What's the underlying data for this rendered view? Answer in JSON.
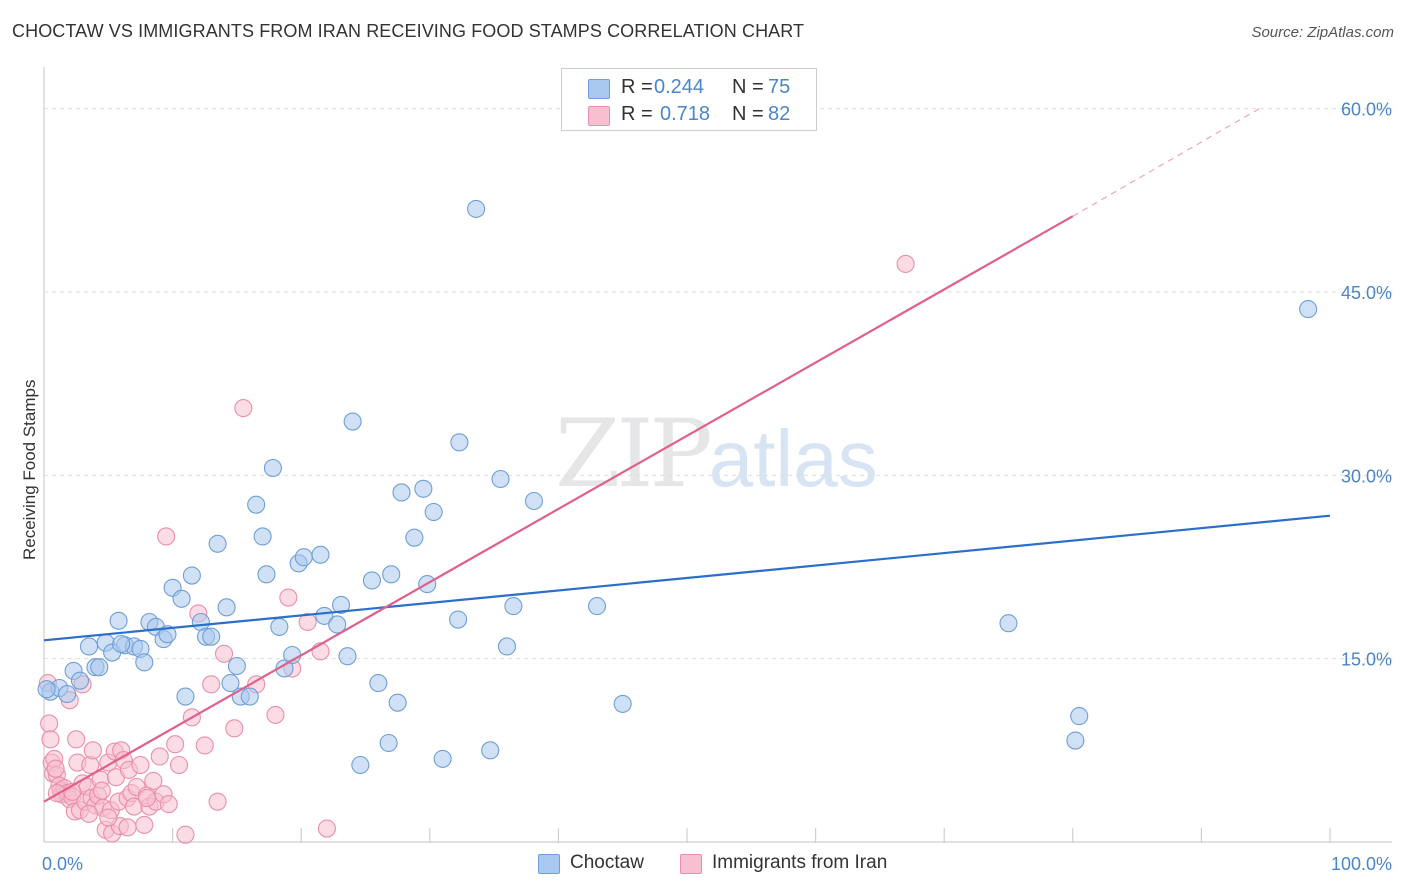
{
  "title": "CHOCTAW VS IMMIGRANTS FROM IRAN RECEIVING FOOD STAMPS CORRELATION CHART",
  "source": "Source: ZipAtlas.com",
  "watermark": {
    "zip": "ZIP",
    "atlas": "atlas"
  },
  "legend": {
    "series1": {
      "r_label": "R =",
      "r_value": "0.244",
      "n_label": "N =",
      "n_value": "75",
      "name": "Choctaw"
    },
    "series2": {
      "r_label": "R =",
      "r_value": "0.718",
      "n_label": "N =",
      "n_value": "82",
      "name": "Immigrants from Iran"
    }
  },
  "colors": {
    "blue_fill": "#a9c8ef",
    "blue_stroke": "#6e9fd6",
    "blue_line": "#2b6fcb",
    "pink_fill": "#f7bfcf",
    "pink_stroke": "#ea8fab",
    "pink_line": "#e0608a",
    "tick_text": "#4a86c8"
  },
  "chart_data": {
    "type": "scatter",
    "title": "CHOCTAW VS IMMIGRANTS FROM IRAN RECEIVING FOOD STAMPS CORRELATION CHART",
    "xlabel": "",
    "ylabel": "Receiving Food Stamps",
    "xlim": [
      0,
      100
    ],
    "ylim": [
      0,
      63
    ],
    "x_tick_labels": [
      "0.0%",
      "100.0%"
    ],
    "y_ticks": [
      15,
      30,
      45,
      60
    ],
    "y_tick_labels": [
      "15.0%",
      "30.0%",
      "45.0%",
      "60.0%"
    ],
    "legend_position": "top-center",
    "series": [
      {
        "name": "Choctaw",
        "r": 0.244,
        "n": 75,
        "trend": {
          "x": [
            0,
            100
          ],
          "y": [
            16.5,
            26.7
          ]
        },
        "points": [
          {
            "x": 0.5,
            "y": 12.3
          },
          {
            "x": 1.2,
            "y": 12.6
          },
          {
            "x": 1.8,
            "y": 12.1
          },
          {
            "x": 2.3,
            "y": 14.0
          },
          {
            "x": 2.8,
            "y": 13.2
          },
          {
            "x": 3.5,
            "y": 16.0
          },
          {
            "x": 4.0,
            "y": 14.3
          },
          {
            "x": 4.3,
            "y": 14.3
          },
          {
            "x": 4.8,
            "y": 16.3
          },
          {
            "x": 5.3,
            "y": 15.5
          },
          {
            "x": 5.8,
            "y": 18.1
          },
          {
            "x": 6.3,
            "y": 16.1
          },
          {
            "x": 7.0,
            "y": 16.0
          },
          {
            "x": 7.5,
            "y": 15.8
          },
          {
            "x": 7.8,
            "y": 14.7
          },
          {
            "x": 8.2,
            "y": 18.0
          },
          {
            "x": 8.7,
            "y": 17.6
          },
          {
            "x": 9.3,
            "y": 16.6
          },
          {
            "x": 9.6,
            "y": 17.0
          },
          {
            "x": 10.0,
            "y": 20.8
          },
          {
            "x": 10.7,
            "y": 19.9
          },
          {
            "x": 11.0,
            "y": 11.9
          },
          {
            "x": 11.5,
            "y": 21.8
          },
          {
            "x": 12.2,
            "y": 18.0
          },
          {
            "x": 12.6,
            "y": 16.8
          },
          {
            "x": 13.0,
            "y": 16.8
          },
          {
            "x": 13.5,
            "y": 24.4
          },
          {
            "x": 14.2,
            "y": 19.2
          },
          {
            "x": 14.5,
            "y": 13.0
          },
          {
            "x": 15.0,
            "y": 14.4
          },
          {
            "x": 15.3,
            "y": 11.9
          },
          {
            "x": 16.0,
            "y": 11.9
          },
          {
            "x": 16.5,
            "y": 27.6
          },
          {
            "x": 17.0,
            "y": 25.0
          },
          {
            "x": 17.3,
            "y": 21.9
          },
          {
            "x": 17.8,
            "y": 30.6
          },
          {
            "x": 18.3,
            "y": 17.6
          },
          {
            "x": 18.7,
            "y": 14.2
          },
          {
            "x": 19.3,
            "y": 15.3
          },
          {
            "x": 19.8,
            "y": 22.8
          },
          {
            "x": 20.2,
            "y": 23.3
          },
          {
            "x": 21.5,
            "y": 23.5
          },
          {
            "x": 21.8,
            "y": 18.5
          },
          {
            "x": 22.8,
            "y": 17.8
          },
          {
            "x": 23.1,
            "y": 19.4
          },
          {
            "x": 23.6,
            "y": 15.2
          },
          {
            "x": 24.0,
            "y": 34.4
          },
          {
            "x": 24.6,
            "y": 6.3
          },
          {
            "x": 25.5,
            "y": 21.4
          },
          {
            "x": 26.0,
            "y": 13.0
          },
          {
            "x": 26.8,
            "y": 8.1
          },
          {
            "x": 27.0,
            "y": 21.9
          },
          {
            "x": 27.5,
            "y": 11.4
          },
          {
            "x": 27.8,
            "y": 28.6
          },
          {
            "x": 28.8,
            "y": 24.9
          },
          {
            "x": 29.5,
            "y": 28.9
          },
          {
            "x": 29.8,
            "y": 21.1
          },
          {
            "x": 30.3,
            "y": 27.0
          },
          {
            "x": 31.0,
            "y": 6.8
          },
          {
            "x": 32.2,
            "y": 18.2
          },
          {
            "x": 32.3,
            "y": 32.7
          },
          {
            "x": 33.6,
            "y": 51.8
          },
          {
            "x": 34.7,
            "y": 7.5
          },
          {
            "x": 35.5,
            "y": 29.7
          },
          {
            "x": 36.0,
            "y": 16.0
          },
          {
            "x": 36.5,
            "y": 19.3
          },
          {
            "x": 38.1,
            "y": 27.9
          },
          {
            "x": 43.0,
            "y": 19.3
          },
          {
            "x": 45.0,
            "y": 11.3
          },
          {
            "x": 75.0,
            "y": 17.9
          },
          {
            "x": 80.2,
            "y": 8.3
          },
          {
            "x": 80.5,
            "y": 10.3
          },
          {
            "x": 98.3,
            "y": 43.6
          },
          {
            "x": 0.2,
            "y": 12.5
          },
          {
            "x": 6.0,
            "y": 16.2
          }
        ]
      },
      {
        "name": "Immigrants from Iran",
        "r": 0.718,
        "n": 82,
        "trend": {
          "x": [
            0,
            80
          ],
          "y": [
            3.3,
            51.2
          ],
          "dashed_to": {
            "x": 94.5,
            "y": 60.0
          }
        },
        "points": [
          {
            "x": 0.3,
            "y": 13.0
          },
          {
            "x": 0.4,
            "y": 9.7
          },
          {
            "x": 0.5,
            "y": 8.4
          },
          {
            "x": 0.6,
            "y": 6.5
          },
          {
            "x": 0.7,
            "y": 5.6
          },
          {
            "x": 0.8,
            "y": 6.8
          },
          {
            "x": 1.0,
            "y": 5.5
          },
          {
            "x": 1.2,
            "y": 4.6
          },
          {
            "x": 1.3,
            "y": 4.2
          },
          {
            "x": 1.4,
            "y": 3.9
          },
          {
            "x": 1.6,
            "y": 4.4
          },
          {
            "x": 1.8,
            "y": 4.0
          },
          {
            "x": 2.0,
            "y": 3.5
          },
          {
            "x": 2.2,
            "y": 3.7
          },
          {
            "x": 2.4,
            "y": 2.5
          },
          {
            "x": 2.5,
            "y": 8.4
          },
          {
            "x": 2.6,
            "y": 6.5
          },
          {
            "x": 2.8,
            "y": 2.6
          },
          {
            "x": 3.0,
            "y": 4.8
          },
          {
            "x": 3.2,
            "y": 3.3
          },
          {
            "x": 3.4,
            "y": 4.5
          },
          {
            "x": 3.6,
            "y": 6.3
          },
          {
            "x": 3.7,
            "y": 3.6
          },
          {
            "x": 3.8,
            "y": 7.5
          },
          {
            "x": 4.0,
            "y": 3.0
          },
          {
            "x": 4.2,
            "y": 3.8
          },
          {
            "x": 4.4,
            "y": 5.1
          },
          {
            "x": 4.5,
            "y": 4.2
          },
          {
            "x": 4.6,
            "y": 2.8
          },
          {
            "x": 4.8,
            "y": 1.0
          },
          {
            "x": 5.0,
            "y": 6.5
          },
          {
            "x": 5.2,
            "y": 2.6
          },
          {
            "x": 5.3,
            "y": 0.7
          },
          {
            "x": 5.5,
            "y": 7.4
          },
          {
            "x": 5.6,
            "y": 5.3
          },
          {
            "x": 5.8,
            "y": 3.3
          },
          {
            "x": 5.9,
            "y": 1.3
          },
          {
            "x": 6.0,
            "y": 7.5
          },
          {
            "x": 6.2,
            "y": 6.7
          },
          {
            "x": 6.5,
            "y": 3.6
          },
          {
            "x": 6.6,
            "y": 5.9
          },
          {
            "x": 6.8,
            "y": 4.0
          },
          {
            "x": 7.0,
            "y": 2.9
          },
          {
            "x": 7.2,
            "y": 4.5
          },
          {
            "x": 7.5,
            "y": 6.3
          },
          {
            "x": 7.8,
            "y": 1.4
          },
          {
            "x": 8.0,
            "y": 3.8
          },
          {
            "x": 8.2,
            "y": 2.9
          },
          {
            "x": 8.5,
            "y": 5.0
          },
          {
            "x": 8.7,
            "y": 3.3
          },
          {
            "x": 9.0,
            "y": 7.0
          },
          {
            "x": 9.3,
            "y": 3.9
          },
          {
            "x": 9.7,
            "y": 3.1
          },
          {
            "x": 10.2,
            "y": 8.0
          },
          {
            "x": 10.5,
            "y": 6.3
          },
          {
            "x": 11.0,
            "y": 0.6
          },
          {
            "x": 11.5,
            "y": 10.2
          },
          {
            "x": 12.0,
            "y": 18.7
          },
          {
            "x": 12.5,
            "y": 7.9
          },
          {
            "x": 13.0,
            "y": 12.9
          },
          {
            "x": 13.5,
            "y": 3.3
          },
          {
            "x": 14.0,
            "y": 15.4
          },
          {
            "x": 14.8,
            "y": 9.3
          },
          {
            "x": 15.5,
            "y": 35.5
          },
          {
            "x": 16.5,
            "y": 12.9
          },
          {
            "x": 18.0,
            "y": 10.4
          },
          {
            "x": 19.0,
            "y": 20.0
          },
          {
            "x": 20.5,
            "y": 18.0
          },
          {
            "x": 21.5,
            "y": 15.6
          },
          {
            "x": 22.0,
            "y": 1.1
          },
          {
            "x": 9.5,
            "y": 25.0
          },
          {
            "x": 67.0,
            "y": 47.3
          },
          {
            "x": 2.0,
            "y": 11.6
          },
          {
            "x": 1.0,
            "y": 4.0
          },
          {
            "x": 3.5,
            "y": 2.3
          },
          {
            "x": 6.5,
            "y": 1.2
          },
          {
            "x": 5.0,
            "y": 2.0
          },
          {
            "x": 8.0,
            "y": 3.6
          },
          {
            "x": 19.3,
            "y": 14.2
          },
          {
            "x": 3.0,
            "y": 12.9
          },
          {
            "x": 0.9,
            "y": 6.0
          },
          {
            "x": 2.2,
            "y": 4.1
          }
        ]
      }
    ]
  }
}
